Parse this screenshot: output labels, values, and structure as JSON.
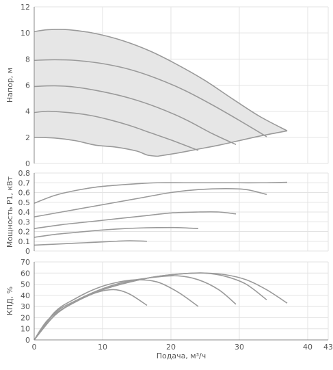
{
  "chart_data": [
    {
      "type": "line",
      "ylabel": "Напор, м",
      "xlim": [
        0,
        43
      ],
      "ylim": [
        0,
        12
      ],
      "yticks": [
        0,
        2,
        4,
        6,
        8,
        10,
        12
      ],
      "grid": true,
      "filled_envelope": true,
      "series": [
        {
          "x": [
            0,
            2,
            5,
            9,
            13,
            17,
            21,
            25,
            29,
            33,
            37
          ],
          "y": [
            10.1,
            10.25,
            10.25,
            9.95,
            9.4,
            8.6,
            7.55,
            6.35,
            4.95,
            3.6,
            2.5
          ]
        },
        {
          "x": [
            0,
            3,
            6,
            10,
            14,
            18,
            22,
            26,
            30,
            34
          ],
          "y": [
            7.9,
            7.95,
            7.9,
            7.65,
            7.2,
            6.5,
            5.6,
            4.5,
            3.3,
            2.05
          ]
        },
        {
          "x": [
            0,
            3,
            6,
            10,
            14,
            18,
            22,
            26,
            29.5
          ],
          "y": [
            5.9,
            5.95,
            5.85,
            5.5,
            5.0,
            4.3,
            3.4,
            2.3,
            1.45
          ]
        },
        {
          "x": [
            0,
            2,
            5,
            8,
            11,
            14,
            17,
            20,
            24
          ],
          "y": [
            3.9,
            4.0,
            3.9,
            3.7,
            3.35,
            2.9,
            2.35,
            1.8,
            1.0
          ]
        },
        {
          "x": [
            0,
            3,
            6,
            9,
            12,
            15,
            16.5,
            18
          ],
          "y": [
            2.0,
            1.95,
            1.75,
            1.4,
            1.25,
            0.95,
            0.65,
            0.55
          ]
        },
        {
          "x": [
            18,
            21,
            24,
            27,
            30,
            33,
            37
          ],
          "y": [
            0.55,
            0.8,
            1.1,
            1.4,
            1.75,
            2.1,
            2.5
          ]
        }
      ]
    },
    {
      "type": "line",
      "ylabel": "Мощность P1, кВт",
      "xlim": [
        0,
        43
      ],
      "ylim": [
        0,
        0.8
      ],
      "yticks": [
        0,
        0.1,
        0.2,
        0.3,
        0.4,
        0.5,
        0.6,
        0.7,
        0.8
      ],
      "grid": true,
      "series": [
        {
          "x": [
            0,
            3,
            6,
            9,
            12,
            15,
            18,
            22,
            26,
            30,
            34,
            37
          ],
          "y": [
            0.49,
            0.57,
            0.62,
            0.655,
            0.675,
            0.69,
            0.7,
            0.7,
            0.7,
            0.7,
            0.7,
            0.705
          ]
        },
        {
          "x": [
            0,
            4,
            8,
            12,
            16,
            20,
            24,
            28,
            31,
            34
          ],
          "y": [
            0.35,
            0.4,
            0.45,
            0.5,
            0.55,
            0.6,
            0.63,
            0.64,
            0.63,
            0.58
          ]
        },
        {
          "x": [
            0,
            4,
            8,
            12,
            16,
            20,
            24,
            27,
            29.5
          ],
          "y": [
            0.23,
            0.27,
            0.3,
            0.33,
            0.36,
            0.39,
            0.4,
            0.4,
            0.38
          ]
        },
        {
          "x": [
            0,
            3,
            6,
            9,
            12,
            15,
            18,
            21,
            24
          ],
          "y": [
            0.14,
            0.17,
            0.19,
            0.21,
            0.225,
            0.235,
            0.24,
            0.24,
            0.23
          ]
        },
        {
          "x": [
            0,
            3,
            6,
            9,
            12,
            14,
            16.5
          ],
          "y": [
            0.06,
            0.07,
            0.08,
            0.09,
            0.1,
            0.105,
            0.1
          ]
        }
      ]
    },
    {
      "type": "line",
      "ylabel": "КПД, %",
      "xlabel": "Подача, м³/ч",
      "xlim": [
        0,
        43
      ],
      "ylim": [
        0,
        70
      ],
      "xticks": [
        0,
        10,
        20,
        30,
        40,
        43
      ],
      "yticks": [
        0,
        10,
        20,
        30,
        40,
        50,
        60,
        70
      ],
      "grid": true,
      "series": [
        {
          "x": [
            0,
            3,
            6,
            10,
            14,
            18,
            22,
            25,
            28,
            31,
            34,
            37
          ],
          "y": [
            0,
            22,
            34,
            45,
            52,
            57,
            59.5,
            60,
            58.5,
            54,
            45,
            33
          ]
        },
        {
          "x": [
            0,
            3,
            6,
            10,
            14,
            18,
            22,
            25,
            28,
            31,
            34
          ],
          "y": [
            0,
            22,
            34,
            45,
            52,
            57,
            59.5,
            60,
            57,
            50,
            36
          ]
        },
        {
          "x": [
            0,
            3,
            6,
            10,
            14,
            18,
            21,
            24,
            27,
            29.5
          ],
          "y": [
            0,
            24,
            35,
            46,
            53,
            56.5,
            57.5,
            54,
            45,
            32
          ]
        },
        {
          "x": [
            0,
            3,
            6,
            9,
            12,
            15,
            18,
            21,
            24
          ],
          "y": [
            0,
            25,
            37,
            46,
            51.5,
            54,
            52,
            43,
            30
          ]
        },
        {
          "x": [
            0,
            2,
            5,
            8,
            10,
            12,
            14,
            16.5
          ],
          "y": [
            0,
            18,
            31,
            40,
            44,
            45,
            41,
            31
          ]
        }
      ]
    }
  ]
}
